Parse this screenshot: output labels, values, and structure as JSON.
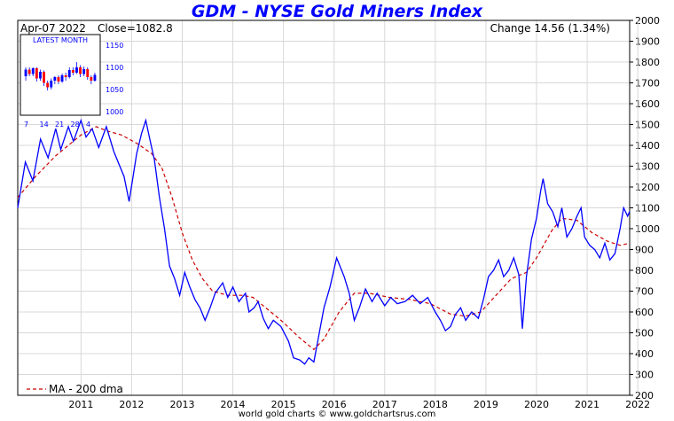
{
  "chart_data": {
    "type": "line",
    "title": "GDM - NYSE Gold Miners Index",
    "info": {
      "date": "Apr-07  2022",
      "close": "Close=1082.8",
      "change": "Change 14.56 (1.34%)"
    },
    "y_axis": {
      "side": "right",
      "min": 200,
      "max": 2000,
      "ticks": [
        "2000",
        "1900",
        "1800",
        "1700",
        "1600",
        "1500",
        "1400",
        "1300",
        "1200",
        "1100",
        "1000",
        "900",
        "800",
        "700",
        "600",
        "500",
        "400",
        "300",
        "200"
      ]
    },
    "x_axis": {
      "min": 2010.25,
      "max": 2022.34,
      "ticks": [
        "2011",
        "2012",
        "2013",
        "2014",
        "2015",
        "2016",
        "2017",
        "2018",
        "2019",
        "2020",
        "2021",
        "2022"
      ]
    },
    "grid": true,
    "legend_text": "MA - 200 dma",
    "colors": {
      "price": "#0000ff",
      "ma": "#cc0000",
      "grid": "#d8d8d8",
      "title": "#0000ff"
    },
    "series": [
      {
        "name": "GDM",
        "color": "#0000ff",
        "points": [
          [
            2010.25,
            1100
          ],
          [
            2010.4,
            1320
          ],
          [
            2010.55,
            1230
          ],
          [
            2010.7,
            1430
          ],
          [
            2010.85,
            1340
          ],
          [
            2011.0,
            1480
          ],
          [
            2011.1,
            1380
          ],
          [
            2011.25,
            1490
          ],
          [
            2011.35,
            1420
          ],
          [
            2011.5,
            1520
          ],
          [
            2011.6,
            1440
          ],
          [
            2011.72,
            1480
          ],
          [
            2011.85,
            1390
          ],
          [
            2012.0,
            1490
          ],
          [
            2012.15,
            1370
          ],
          [
            2012.35,
            1250
          ],
          [
            2012.45,
            1130
          ],
          [
            2012.6,
            1360
          ],
          [
            2012.7,
            1460
          ],
          [
            2012.78,
            1520
          ],
          [
            2012.85,
            1440
          ],
          [
            2012.95,
            1330
          ],
          [
            2013.05,
            1150
          ],
          [
            2013.15,
            1000
          ],
          [
            2013.25,
            820
          ],
          [
            2013.35,
            760
          ],
          [
            2013.45,
            680
          ],
          [
            2013.55,
            790
          ],
          [
            2013.65,
            720
          ],
          [
            2013.75,
            660
          ],
          [
            2013.85,
            620
          ],
          [
            2013.95,
            560
          ],
          [
            2014.05,
            620
          ],
          [
            2014.15,
            690
          ],
          [
            2014.3,
            740
          ],
          [
            2014.4,
            670
          ],
          [
            2014.5,
            720
          ],
          [
            2014.62,
            650
          ],
          [
            2014.75,
            690
          ],
          [
            2014.82,
            600
          ],
          [
            2014.92,
            620
          ],
          [
            2015.0,
            650
          ],
          [
            2015.1,
            570
          ],
          [
            2015.2,
            520
          ],
          [
            2015.3,
            560
          ],
          [
            2015.45,
            530
          ],
          [
            2015.6,
            460
          ],
          [
            2015.7,
            380
          ],
          [
            2015.82,
            370
          ],
          [
            2015.92,
            350
          ],
          [
            2016.0,
            380
          ],
          [
            2016.1,
            360
          ],
          [
            2016.2,
            490
          ],
          [
            2016.3,
            620
          ],
          [
            2016.42,
            720
          ],
          [
            2016.55,
            860
          ],
          [
            2016.6,
            830
          ],
          [
            2016.7,
            770
          ],
          [
            2016.8,
            690
          ],
          [
            2016.9,
            560
          ],
          [
            2017.0,
            620
          ],
          [
            2017.12,
            710
          ],
          [
            2017.25,
            650
          ],
          [
            2017.35,
            690
          ],
          [
            2017.5,
            630
          ],
          [
            2017.62,
            670
          ],
          [
            2017.75,
            640
          ],
          [
            2017.9,
            650
          ],
          [
            2018.05,
            680
          ],
          [
            2018.2,
            640
          ],
          [
            2018.35,
            670
          ],
          [
            2018.5,
            600
          ],
          [
            2018.6,
            560
          ],
          [
            2018.7,
            510
          ],
          [
            2018.8,
            530
          ],
          [
            2018.9,
            590
          ],
          [
            2019.0,
            620
          ],
          [
            2019.1,
            560
          ],
          [
            2019.22,
            600
          ],
          [
            2019.35,
            570
          ],
          [
            2019.45,
            660
          ],
          [
            2019.55,
            770
          ],
          [
            2019.65,
            800
          ],
          [
            2019.75,
            850
          ],
          [
            2019.85,
            770
          ],
          [
            2019.95,
            800
          ],
          [
            2020.05,
            860
          ],
          [
            2020.15,
            780
          ],
          [
            2020.22,
            520
          ],
          [
            2020.3,
            770
          ],
          [
            2020.4,
            950
          ],
          [
            2020.5,
            1050
          ],
          [
            2020.58,
            1180
          ],
          [
            2020.63,
            1240
          ],
          [
            2020.72,
            1120
          ],
          [
            2020.82,
            1080
          ],
          [
            2020.92,
            1010
          ],
          [
            2021.0,
            1100
          ],
          [
            2021.1,
            960
          ],
          [
            2021.2,
            1000
          ],
          [
            2021.3,
            1060
          ],
          [
            2021.38,
            1100
          ],
          [
            2021.45,
            960
          ],
          [
            2021.55,
            920
          ],
          [
            2021.65,
            900
          ],
          [
            2021.75,
            860
          ],
          [
            2021.85,
            930
          ],
          [
            2021.95,
            850
          ],
          [
            2022.05,
            880
          ],
          [
            2022.15,
            1000
          ],
          [
            2022.22,
            1100
          ],
          [
            2022.3,
            1060
          ],
          [
            2022.34,
            1083
          ]
        ]
      },
      {
        "name": "MA - 200 dma",
        "color": "#cc0000",
        "points": [
          [
            2010.25,
            1150
          ],
          [
            2010.6,
            1250
          ],
          [
            2011.0,
            1350
          ],
          [
            2011.5,
            1450
          ],
          [
            2011.8,
            1490
          ],
          [
            2012.0,
            1470
          ],
          [
            2012.3,
            1450
          ],
          [
            2012.6,
            1410
          ],
          [
            2012.9,
            1360
          ],
          [
            2013.1,
            1290
          ],
          [
            2013.3,
            1150
          ],
          [
            2013.5,
            980
          ],
          [
            2013.7,
            850
          ],
          [
            2013.9,
            760
          ],
          [
            2014.1,
            700
          ],
          [
            2014.4,
            680
          ],
          [
            2014.7,
            680
          ],
          [
            2014.9,
            670
          ],
          [
            2015.2,
            610
          ],
          [
            2015.5,
            550
          ],
          [
            2015.8,
            480
          ],
          [
            2016.1,
            420
          ],
          [
            2016.3,
            470
          ],
          [
            2016.6,
            600
          ],
          [
            2016.9,
            690
          ],
          [
            2017.2,
            690
          ],
          [
            2017.6,
            670
          ],
          [
            2018.0,
            660
          ],
          [
            2018.4,
            640
          ],
          [
            2018.8,
            590
          ],
          [
            2019.1,
            580
          ],
          [
            2019.4,
            600
          ],
          [
            2019.7,
            680
          ],
          [
            2020.0,
            760
          ],
          [
            2020.3,
            790
          ],
          [
            2020.5,
            860
          ],
          [
            2020.8,
            990
          ],
          [
            2021.0,
            1050
          ],
          [
            2021.3,
            1040
          ],
          [
            2021.6,
            980
          ],
          [
            2021.9,
            940
          ],
          [
            2022.15,
            920
          ],
          [
            2022.34,
            930
          ]
        ]
      }
    ],
    "inset": {
      "label": "LATEST MONTH",
      "y_ticks": [
        "1150",
        "1100",
        "1050",
        "1000"
      ],
      "y_min": 1000,
      "y_max": 1150,
      "x_ticks": [
        "7",
        "14",
        "21",
        "28",
        "4"
      ],
      "candles": [
        [
          1080,
          1095,
          1070,
          1100
        ],
        [
          1095,
          1085,
          1080,
          1100
        ],
        [
          1085,
          1098,
          1080,
          1100
        ],
        [
          1098,
          1075,
          1068,
          1100
        ],
        [
          1075,
          1090,
          1070,
          1095
        ],
        [
          1090,
          1065,
          1058,
          1093
        ],
        [
          1065,
          1055,
          1048,
          1070
        ],
        [
          1055,
          1070,
          1050,
          1075
        ],
        [
          1070,
          1078,
          1062,
          1080
        ],
        [
          1078,
          1068,
          1062,
          1082
        ],
        [
          1068,
          1082,
          1065,
          1086
        ],
        [
          1082,
          1078,
          1070,
          1088
        ],
        [
          1078,
          1094,
          1075,
          1100
        ],
        [
          1094,
          1088,
          1082,
          1100
        ],
        [
          1088,
          1100,
          1085,
          1112
        ],
        [
          1100,
          1085,
          1078,
          1105
        ],
        [
          1085,
          1096,
          1080,
          1102
        ],
        [
          1096,
          1078,
          1072,
          1100
        ],
        [
          1078,
          1070,
          1062,
          1082
        ],
        [
          1070,
          1083,
          1068,
          1088
        ]
      ]
    }
  },
  "footer": "world gold charts © www.goldchartsrus.com"
}
